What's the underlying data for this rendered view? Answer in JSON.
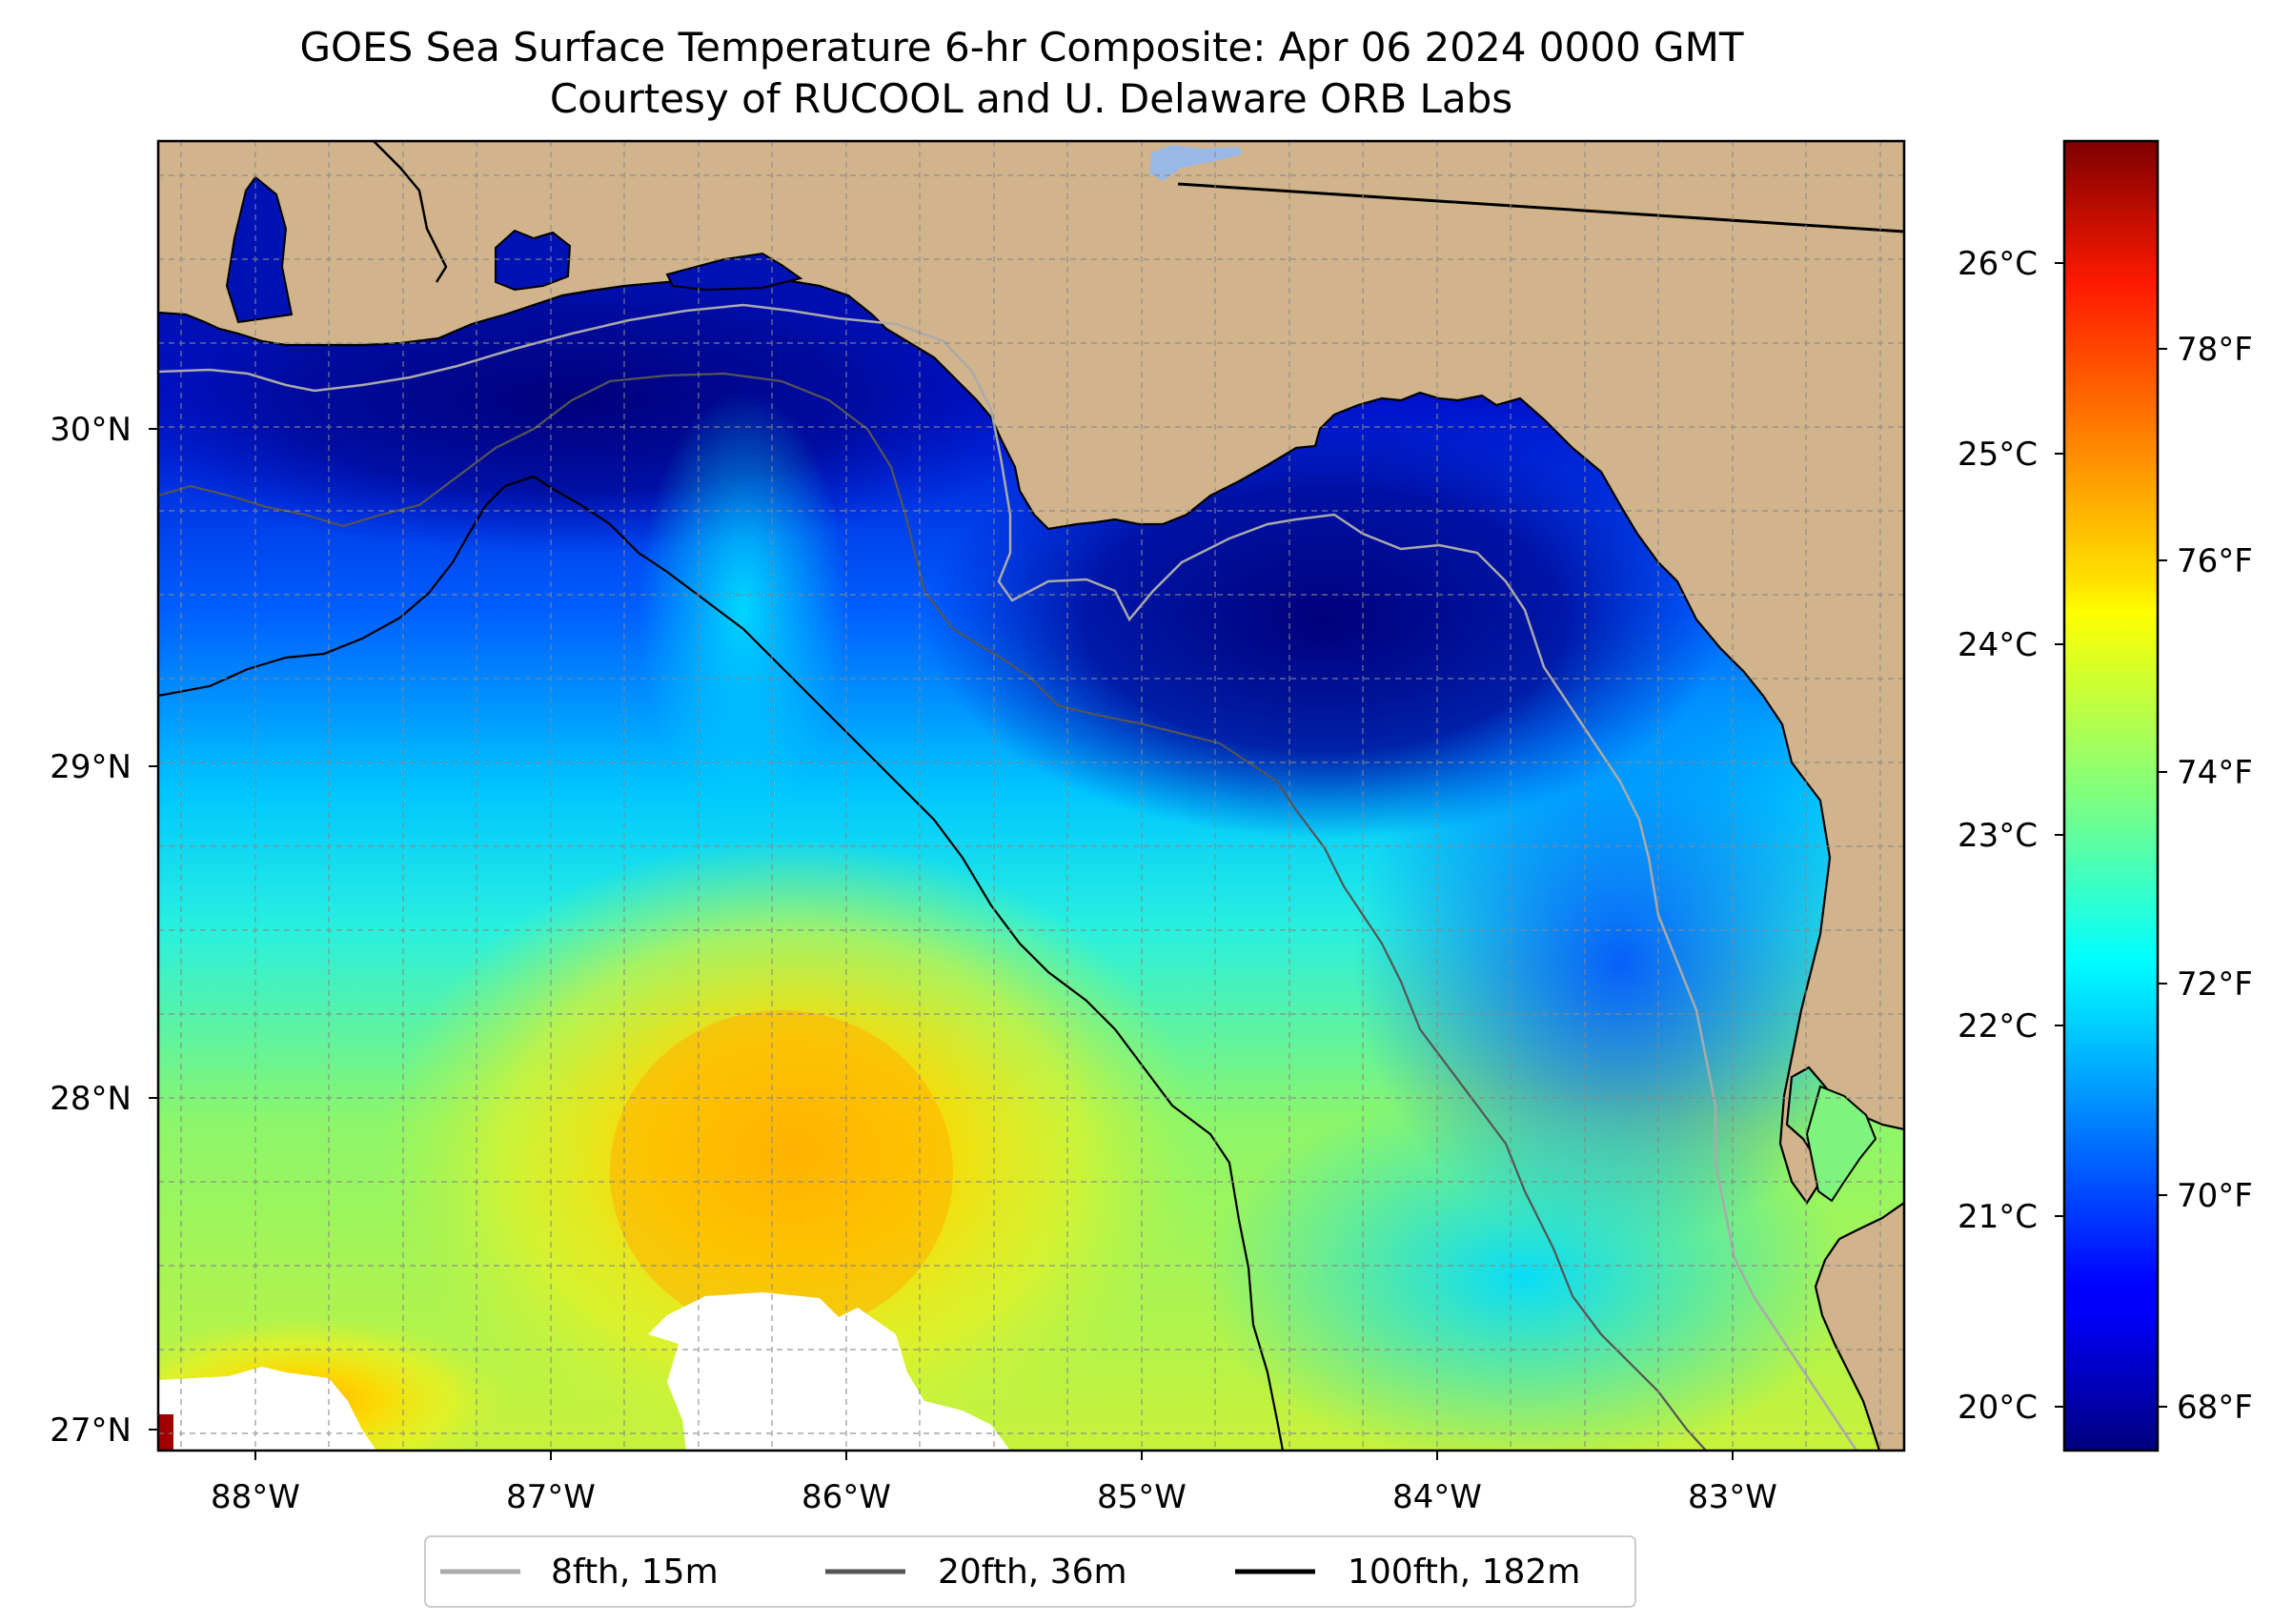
{
  "title": {
    "line1": "GOES Sea Surface Temperature 6-hr Composite: Apr 06 2024 0000 GMT",
    "line2": "Courtesy of RUCOOL and U. Delaware ORB Labs"
  },
  "map": {
    "lon_labels": [
      "88°W",
      "87°W",
      "86°W",
      "85°W",
      "84°W",
      "83°W"
    ],
    "lat_labels": [
      "27°N",
      "28°N",
      "29°N",
      "30°N"
    ],
    "lon_range": [
      -88.33,
      -82.4
    ],
    "lat_range": [
      26.93,
      30.84
    ],
    "land_color": "#D2B48C",
    "colormap": "jet"
  },
  "colorbar": {
    "celsius_labels": [
      "20°C",
      "21°C",
      "22°C",
      "23°C",
      "24°C",
      "25°C",
      "26°C"
    ],
    "fahrenheit_labels": [
      "68°F",
      "70°F",
      "72°F",
      "74°F",
      "76°F",
      "78°F"
    ],
    "range_c": [
      19.8,
      26.7
    ]
  },
  "legend": {
    "items": [
      {
        "label": "8fth, 15m",
        "color": "#aaaaaa"
      },
      {
        "label": "20fth, 36m",
        "color": "#555555"
      },
      {
        "label": "100fth, 182m",
        "color": "#000000"
      }
    ]
  }
}
